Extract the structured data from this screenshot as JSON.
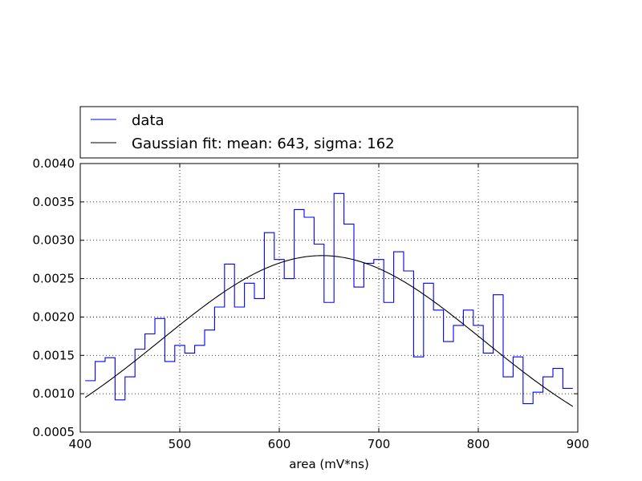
{
  "chart_data": {
    "type": "line",
    "xlabel": "area (mV*ns)",
    "ylabel": "",
    "xlim": [
      400,
      900
    ],
    "ylim": [
      0.0005,
      0.004
    ],
    "grid": true,
    "legend_position": "above-plot",
    "x_ticks": [
      "400",
      "500",
      "600",
      "700",
      "800",
      "900"
    ],
    "y_ticks": [
      "0.0005",
      "0.0010",
      "0.0015",
      "0.0020",
      "0.0025",
      "0.0030",
      "0.0035",
      "0.0040"
    ],
    "series": [
      {
        "name": "data",
        "kind": "step-histogram",
        "color": "#0000ff",
        "bin_edges": [
          405,
          415,
          425,
          435,
          445,
          455,
          465,
          475,
          485,
          495,
          505,
          515,
          525,
          535,
          545,
          555,
          565,
          575,
          585,
          595,
          605,
          615,
          625,
          635,
          645,
          655,
          665,
          675,
          685,
          695,
          705,
          715,
          725,
          735,
          745,
          755,
          765,
          775,
          785,
          795,
          805,
          815,
          825,
          835,
          845,
          855,
          865,
          875,
          885,
          895
        ],
        "values": [
          0.00117,
          0.00142,
          0.00147,
          0.00092,
          0.00122,
          0.00158,
          0.00178,
          0.00198,
          0.00142,
          0.00163,
          0.00153,
          0.00163,
          0.00183,
          0.00213,
          0.00269,
          0.00213,
          0.00244,
          0.00224,
          0.0031,
          0.00275,
          0.0025,
          0.0034,
          0.0033,
          0.00295,
          0.00219,
          0.00361,
          0.00321,
          0.00239,
          0.0027,
          0.00275,
          0.00219,
          0.00285,
          0.0026,
          0.00148,
          0.00244,
          0.00209,
          0.00168,
          0.00189,
          0.00209,
          0.00189,
          0.00153,
          0.00229,
          0.00122,
          0.00148,
          0.00087,
          0.00102,
          0.00122,
          0.00133,
          0.00107
        ]
      },
      {
        "name": "Gaussian fit: mean: 643, sigma: 162",
        "kind": "curve",
        "color": "#000000",
        "mean": 643,
        "sigma": 162,
        "peak": 0.0028,
        "x_range": [
          405,
          895
        ]
      }
    ]
  }
}
